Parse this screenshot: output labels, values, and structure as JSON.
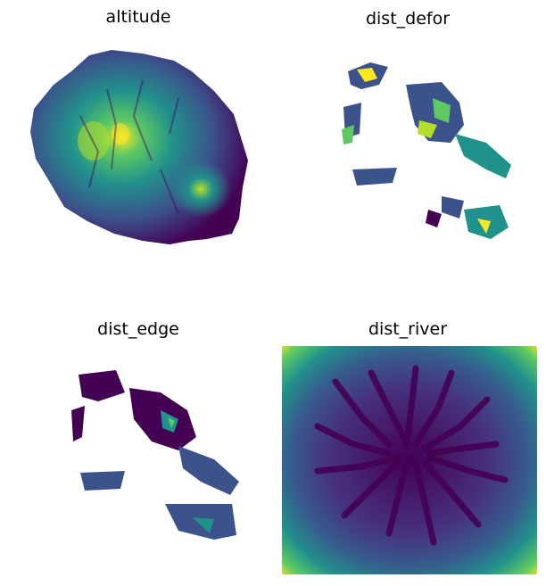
{
  "figure": {
    "panels": [
      {
        "title": "altitude"
      },
      {
        "title": "dist_defor"
      },
      {
        "title": "dist_edge"
      },
      {
        "title": "dist_river"
      }
    ]
  },
  "chart_data": [
    {
      "type": "heatmap",
      "title": "altitude",
      "colormap": "viridis",
      "axes": "off"
    },
    {
      "type": "heatmap",
      "title": "dist_defor",
      "colormap": "viridis",
      "axes": "off"
    },
    {
      "type": "heatmap",
      "title": "dist_edge",
      "colormap": "viridis",
      "axes": "off"
    },
    {
      "type": "heatmap",
      "title": "dist_river",
      "colormap": "viridis",
      "axes": "off"
    }
  ],
  "colors": {
    "viridis_dark": "#440154",
    "viridis_blue": "#3b528b",
    "viridis_teal": "#21918c",
    "viridis_green": "#5ec962",
    "viridis_yellow": "#fde725"
  }
}
